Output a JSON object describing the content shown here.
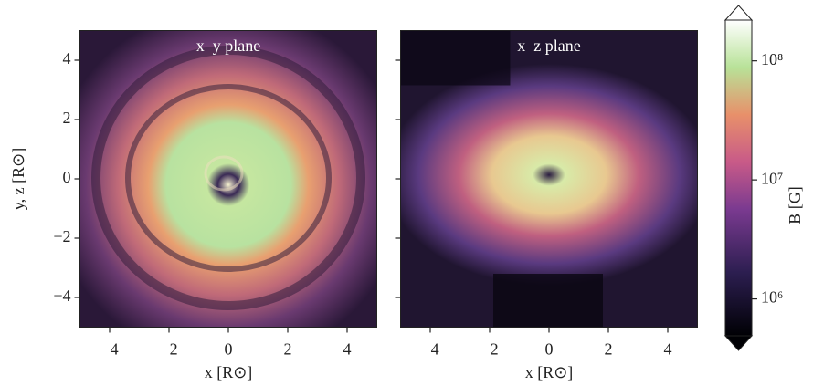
{
  "chart_data": [
    {
      "type": "image",
      "title": "x–y plane",
      "xlabel": "x [R⊙]",
      "ylabel": "y, z [R⊙]",
      "xlim": [
        -5,
        5
      ],
      "ylim": [
        -5,
        5
      ],
      "xticks": [
        {
          "value": -4,
          "label": "−4"
        },
        {
          "value": -2,
          "label": "−2"
        },
        0,
        2,
        4
      ],
      "yticks": [
        {
          "value": -4,
          "label": "−4"
        },
        {
          "value": -2,
          "label": "−2"
        },
        0,
        2,
        4
      ]
    },
    {
      "type": "image",
      "title": "x–z plane",
      "xlabel": "x [R⊙]",
      "xlim": [
        -5,
        5
      ],
      "ylim": [
        -5,
        5
      ],
      "xticks": [
        {
          "value": -4,
          "label": "−4"
        },
        {
          "value": -2,
          "label": "−2"
        },
        0,
        2,
        4
      ],
      "yticks": [
        -4,
        -2,
        0,
        2,
        4
      ]
    },
    {
      "type": "colorbar",
      "label": "B [G]",
      "log": true,
      "ylim": [
        490000,
        220000000
      ],
      "yticks": [
        {
          "value": 1000000,
          "label": "10⁶"
        },
        {
          "value": 10000000,
          "label": "10⁷"
        },
        {
          "value": 100000000,
          "label": "10⁸"
        }
      ]
    }
  ]
}
